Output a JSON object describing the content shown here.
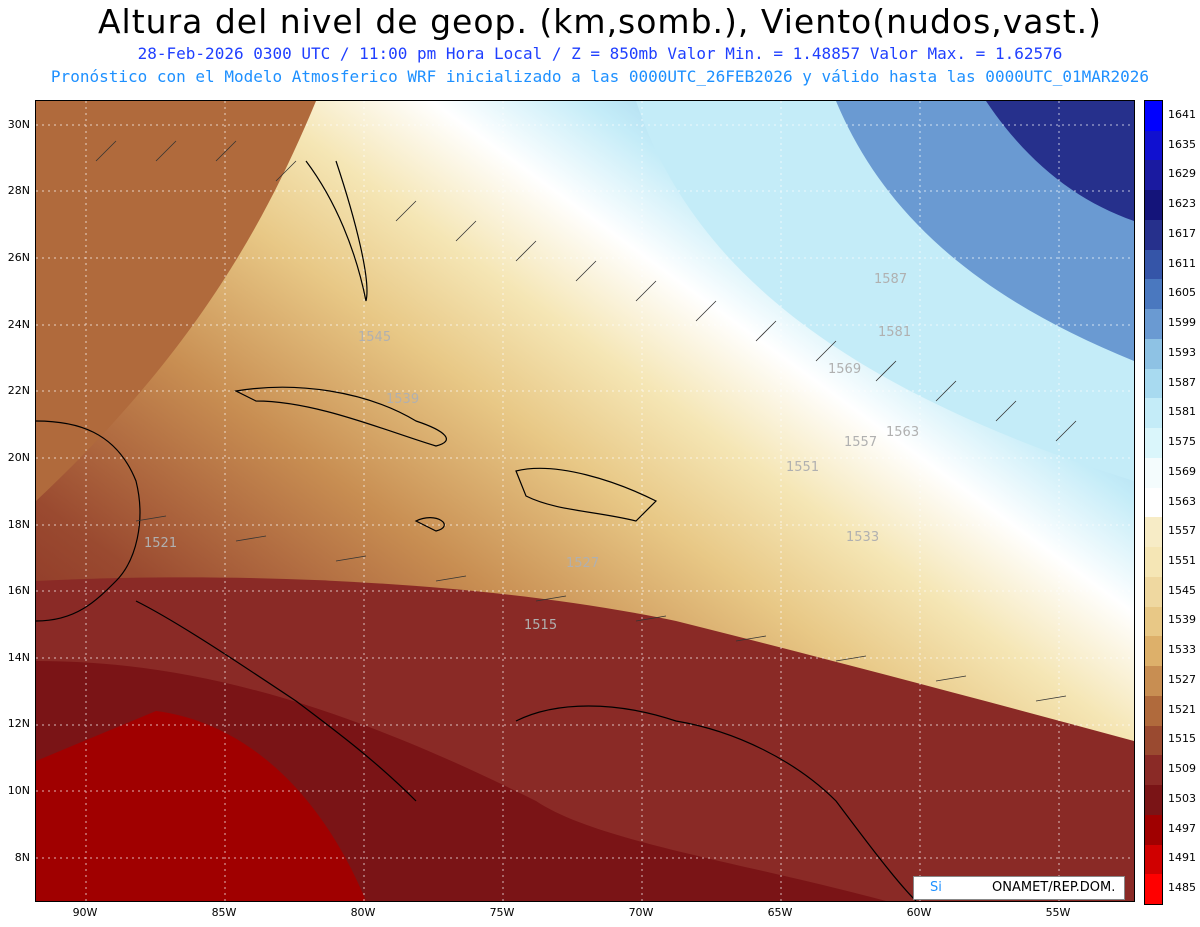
{
  "header": {
    "title": "Altura del nivel de geop. (km,somb.), Viento(nudos,vast.)",
    "line1": "28-Feb-2026  0300 UTC / 11:00 pm Hora Local / Z = 850mb    Valor Min. = 1.48857  Valor Max. = 1.62576",
    "line2": "Pronóstico con el Modelo Atmosferico WRF inicializado a las 0000UTC_26FEB2026 y válido hasta las  0000UTC_01MAR2026"
  },
  "axes": {
    "lat_labels": [
      "30N",
      "28N",
      "26N",
      "24N",
      "22N",
      "20N",
      "18N",
      "16N",
      "14N",
      "12N",
      "10N",
      "8N"
    ],
    "lon_labels": [
      "90W",
      "85W",
      "80W",
      "75W",
      "70W",
      "65W",
      "60W",
      "55W"
    ]
  },
  "colorbar": {
    "levels": [
      "1641",
      "1635",
      "1629",
      "1623",
      "1617",
      "1611",
      "1605",
      "1599",
      "1593",
      "1587",
      "1581",
      "1575",
      "1569",
      "1563",
      "1557",
      "1551",
      "1545",
      "1539",
      "1533",
      "1527",
      "1521",
      "1515",
      "1509",
      "1503",
      "1497",
      "1491",
      "1485"
    ],
    "colors": [
      "#0000ff",
      "#1010d0",
      "#1a1aa0",
      "#14147a",
      "#26308c",
      "#3555a8",
      "#4a78bf",
      "#6a9ad2",
      "#8ec2e4",
      "#a8daf0",
      "#c4ecf8",
      "#daf6fb",
      "#f4fcfd",
      "#ffffff",
      "#f7ecc6",
      "#f5e6b5",
      "#efd8a0",
      "#e8c886",
      "#ddb06a",
      "#c88e52",
      "#b06a3c",
      "#9a4a30",
      "#8a2a26",
      "#7a1416",
      "#a00000",
      "#d00000",
      "#ff0000"
    ]
  },
  "contour_labels": [
    "1587",
    "1581",
    "1569",
    "1563",
    "1557",
    "1551",
    "1545",
    "1539",
    "1533",
    "1527",
    "1521",
    "1515"
  ],
  "credit": {
    "left": "Si",
    "right": "ONAMET/REP.DOM."
  }
}
